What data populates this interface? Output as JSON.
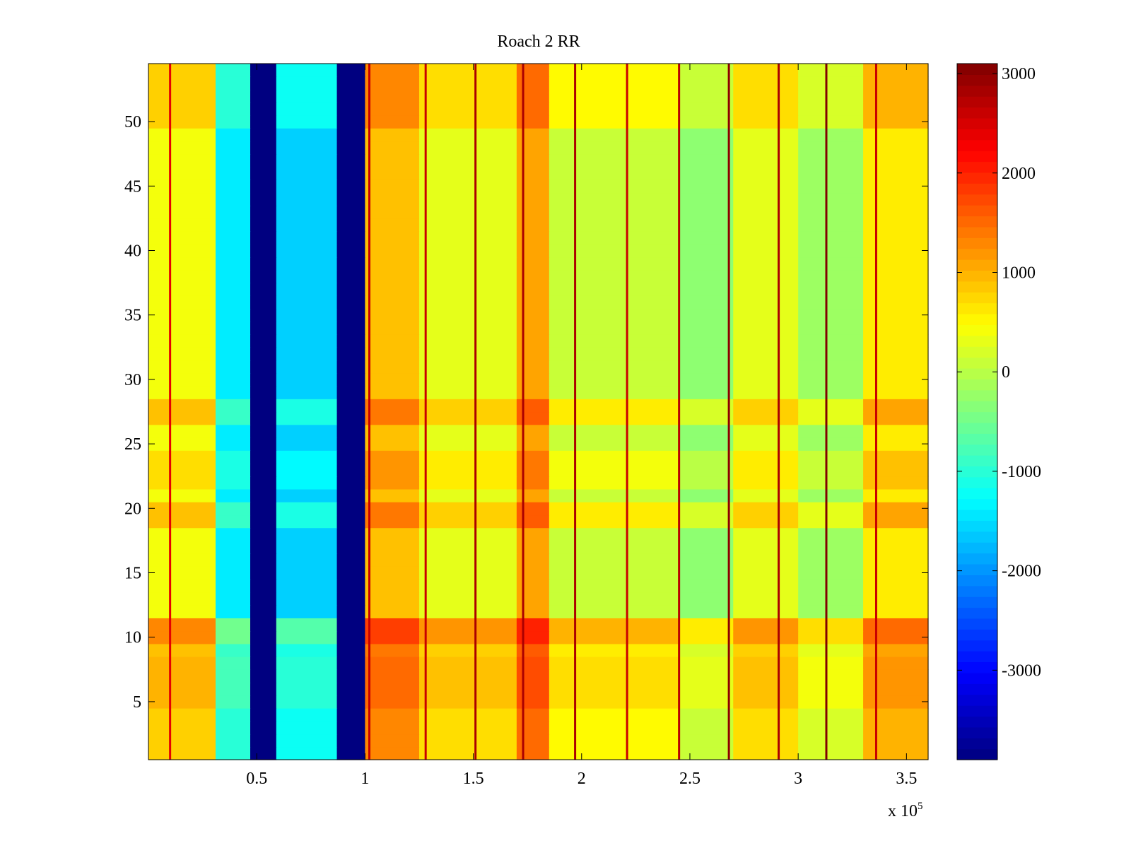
{
  "chart_data": {
    "type": "heatmap",
    "title": "Roach 2 RR",
    "xlabel": "",
    "ylabel": "",
    "x_exponent_label": "x 10",
    "x_exponent_power": "5",
    "xlim": [
      0,
      360000
    ],
    "ylim": [
      0.5,
      54.5
    ],
    "x_ticks": [
      {
        "value": 0.5,
        "label": "0.5"
      },
      {
        "value": 1,
        "label": "1"
      },
      {
        "value": 1.5,
        "label": "1.5"
      },
      {
        "value": 2,
        "label": "2"
      },
      {
        "value": 2.5,
        "label": "2.5"
      },
      {
        "value": 3,
        "label": "3"
      },
      {
        "value": 3.5,
        "label": "3.5"
      }
    ],
    "y_ticks": [
      {
        "value": 5,
        "label": "5"
      },
      {
        "value": 10,
        "label": "10"
      },
      {
        "value": 15,
        "label": "15"
      },
      {
        "value": 20,
        "label": "20"
      },
      {
        "value": 25,
        "label": "25"
      },
      {
        "value": 30,
        "label": "30"
      },
      {
        "value": 35,
        "label": "35"
      },
      {
        "value": 40,
        "label": "40"
      },
      {
        "value": 45,
        "label": "45"
      },
      {
        "value": 50,
        "label": "50"
      }
    ],
    "rows": 54,
    "colormap": "jet",
    "colorbar": {
      "range": [
        -3900,
        3100
      ],
      "ticks": [
        {
          "value": 3000,
          "label": "3000"
        },
        {
          "value": 2000,
          "label": "2000"
        },
        {
          "value": 1000,
          "label": "1000"
        },
        {
          "value": 0,
          "label": "0"
        },
        {
          "value": -1000,
          "label": "-1000"
        },
        {
          "value": -2000,
          "label": "-2000"
        },
        {
          "value": -3000,
          "label": "-3000"
        }
      ]
    },
    "column_bands": [
      {
        "x_start": 0,
        "x_end": 31000,
        "value": 400
      },
      {
        "x_start": 31000,
        "x_end": 47000,
        "value": -1400
      },
      {
        "x_start": 47000,
        "x_end": 59000,
        "value": -3900
      },
      {
        "x_start": 59000,
        "x_end": 87000,
        "value": -1600
      },
      {
        "x_start": 87000,
        "x_end": 100000,
        "value": -3900
      },
      {
        "x_start": 100000,
        "x_end": 125000,
        "value": 900
      },
      {
        "x_start": 125000,
        "x_end": 170000,
        "value": 300
      },
      {
        "x_start": 170000,
        "x_end": 185000,
        "value": 1100
      },
      {
        "x_start": 185000,
        "x_end": 245000,
        "value": 100
      },
      {
        "x_start": 245000,
        "x_end": 270000,
        "value": -300
      },
      {
        "x_start": 270000,
        "x_end": 300000,
        "value": 300
      },
      {
        "x_start": 300000,
        "x_end": 330000,
        "value": -200
      },
      {
        "x_start": 330000,
        "x_end": 360000,
        "value": 600
      }
    ],
    "row_adjustments": [
      {
        "row_start": 1,
        "row_end": 4,
        "delta": 400
      },
      {
        "row_start": 5,
        "row_end": 8,
        "delta": 600
      },
      {
        "row_start": 9,
        "row_end": 9,
        "delta": 500
      },
      {
        "row_start": 10,
        "row_end": 11,
        "delta": 900
      },
      {
        "row_start": 19,
        "row_end": 20,
        "delta": 500
      },
      {
        "row_start": 22,
        "row_end": 24,
        "delta": 300
      },
      {
        "row_start": 27,
        "row_end": 28,
        "delta": 500
      },
      {
        "row_start": 50,
        "row_end": 54,
        "delta": 400
      }
    ],
    "vertical_lines": [
      {
        "x": 10000,
        "value": 2400
      },
      {
        "x": 102000,
        "value": 2600
      },
      {
        "x": 128000,
        "value": 2600
      },
      {
        "x": 151000,
        "value": 2800
      },
      {
        "x": 173000,
        "value": 2800
      },
      {
        "x": 197000,
        "value": 2800
      },
      {
        "x": 221000,
        "value": 2600
      },
      {
        "x": 245000,
        "value": 2700
      },
      {
        "x": 268000,
        "value": 3000
      },
      {
        "x": 291000,
        "value": 2800
      },
      {
        "x": 313000,
        "value": 3100
      },
      {
        "x": 336000,
        "value": 2600
      }
    ]
  }
}
